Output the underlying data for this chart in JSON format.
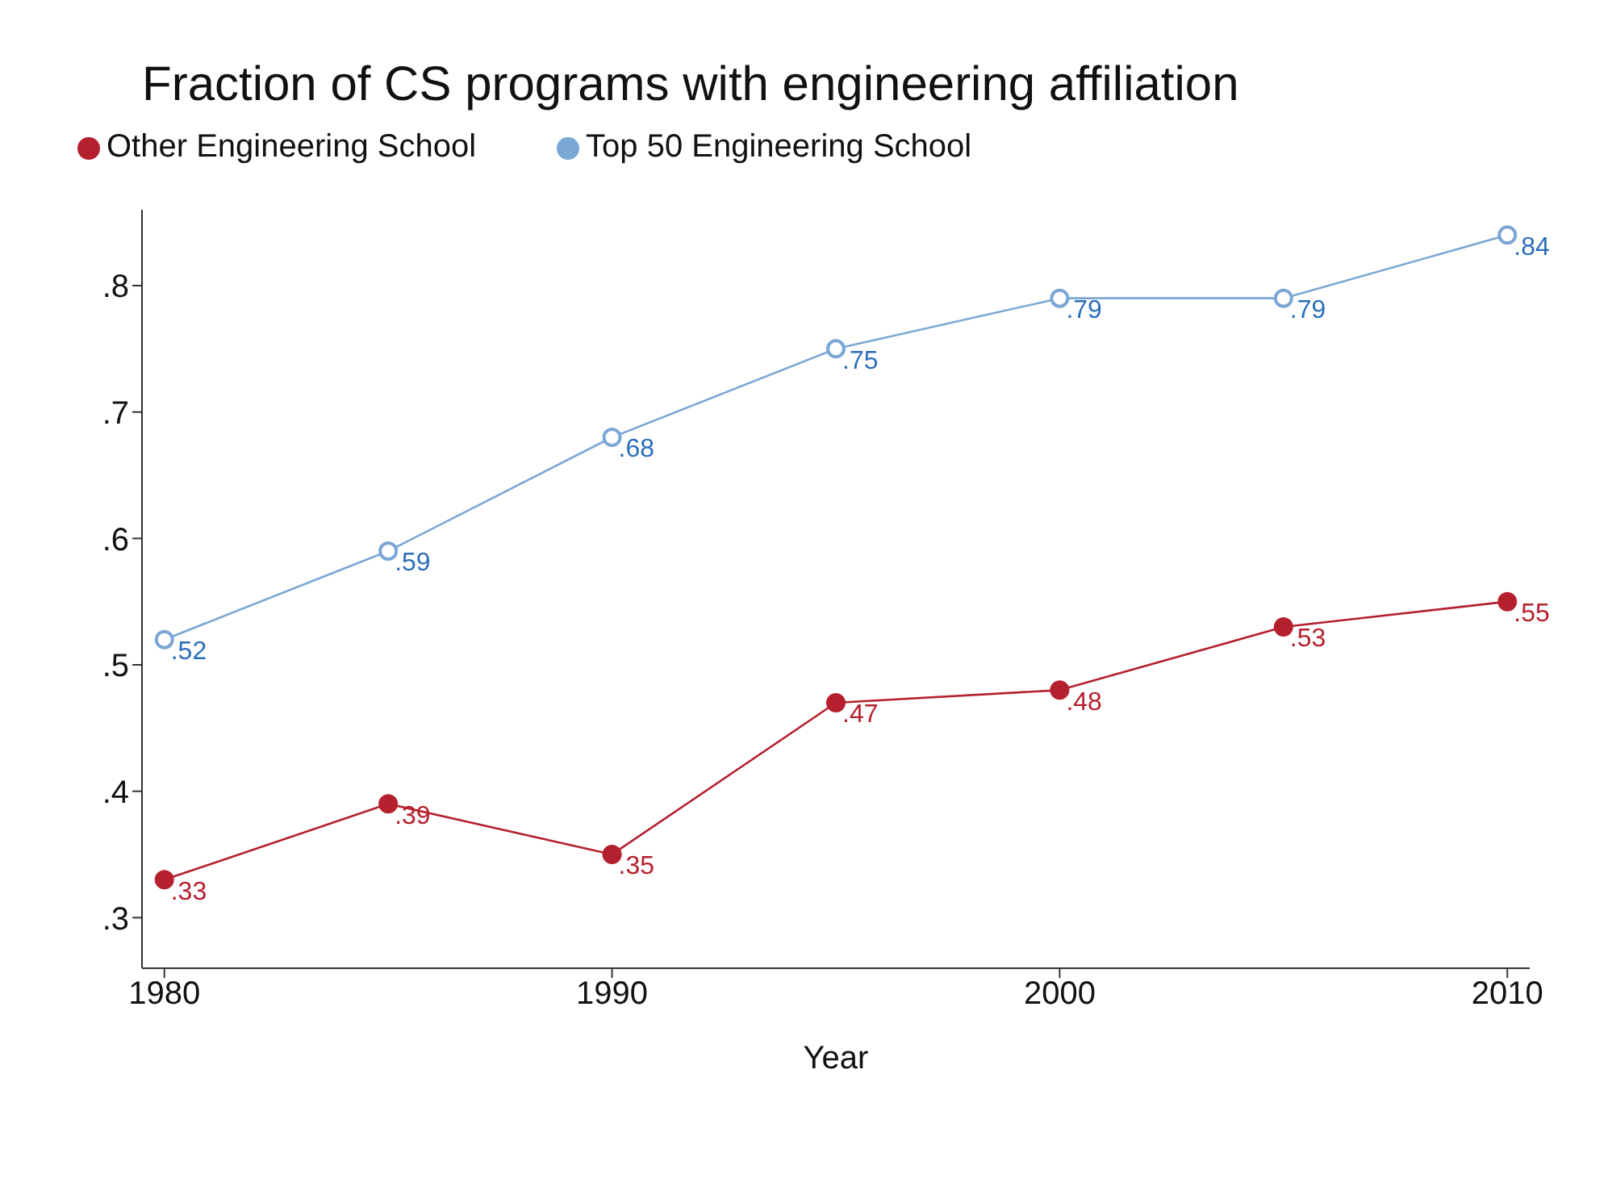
{
  "chart_data": {
    "type": "line",
    "title": "Fraction of CS programs with engineering affiliation",
    "xlabel": "Year",
    "x": [
      1980,
      1985,
      1990,
      1995,
      2000,
      2005,
      2010
    ],
    "series": [
      {
        "name": "Top 50 Engineering School",
        "color": "#7ba7d6",
        "values": [
          0.52,
          0.59,
          0.68,
          0.75,
          0.79,
          0.79,
          0.84
        ],
        "value_labels": [
          ".52",
          ".59",
          ".68",
          ".75",
          ".79",
          ".79",
          ".84"
        ]
      },
      {
        "name": "Other Engineering School",
        "color": "#b5202e",
        "values": [
          0.33,
          0.39,
          0.35,
          0.47,
          0.48,
          0.53,
          0.55
        ],
        "value_labels": [
          ".33",
          ".39",
          ".35",
          ".47",
          ".48",
          ".53",
          ".55"
        ]
      }
    ],
    "xlim": [
      1979.5,
      2010.5
    ],
    "xticks": [
      1980,
      1990,
      2000,
      2010
    ],
    "ylim": [
      0.26,
      0.86
    ],
    "yticks": [
      {
        "value": 0.3,
        "label": ".3"
      },
      {
        "value": 0.4,
        "label": ".4"
      },
      {
        "value": 0.5,
        "label": ".5"
      },
      {
        "value": 0.6,
        "label": ".6"
      },
      {
        "value": 0.7,
        "label": ".7"
      },
      {
        "value": 0.8,
        "label": ".8"
      }
    ],
    "grid": false,
    "legend": "top left",
    "marker": "circle",
    "line_style": "solid"
  }
}
